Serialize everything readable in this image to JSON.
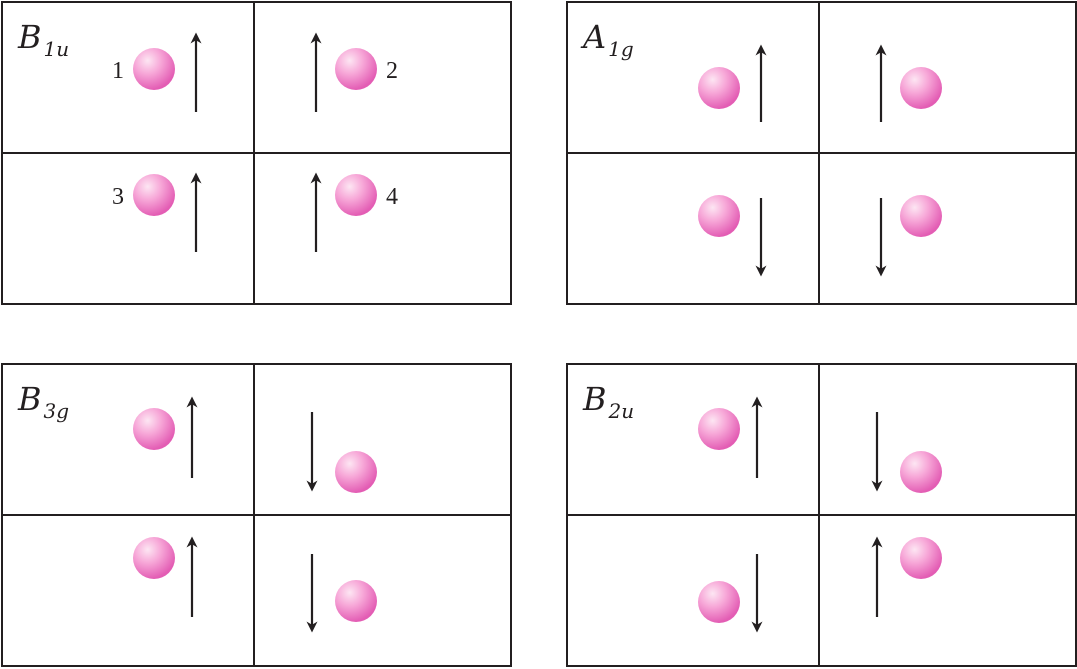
{
  "colors": {
    "stroke": "#231f20",
    "atom_light": "#fde6f3",
    "atom_mid": "#f7a8d8",
    "atom_dark": "#e35db4"
  },
  "panels": [
    {
      "id": "b1u",
      "label_main": "B",
      "label_sub": "1u",
      "sites": [
        {
          "num": "1",
          "spin": "up"
        },
        {
          "num": "2",
          "spin": "up"
        },
        {
          "num": "3",
          "spin": "up"
        },
        {
          "num": "4",
          "spin": "up"
        }
      ]
    },
    {
      "id": "a1g",
      "label_main": "A",
      "label_sub": "1g",
      "sites": [
        {
          "num": "",
          "spin": "up"
        },
        {
          "num": "",
          "spin": "up"
        },
        {
          "num": "",
          "spin": "down"
        },
        {
          "num": "",
          "spin": "down"
        }
      ]
    },
    {
      "id": "b3g",
      "label_main": "B",
      "label_sub": "3g",
      "sites": [
        {
          "num": "",
          "spin": "up"
        },
        {
          "num": "",
          "spin": "down"
        },
        {
          "num": "",
          "spin": "up"
        },
        {
          "num": "",
          "spin": "down"
        }
      ]
    },
    {
      "id": "b2u",
      "label_main": "B",
      "label_sub": "2u",
      "sites": [
        {
          "num": "",
          "spin": "up"
        },
        {
          "num": "",
          "spin": "down"
        },
        {
          "num": "",
          "spin": "down"
        },
        {
          "num": "",
          "spin": "up"
        }
      ]
    }
  ]
}
